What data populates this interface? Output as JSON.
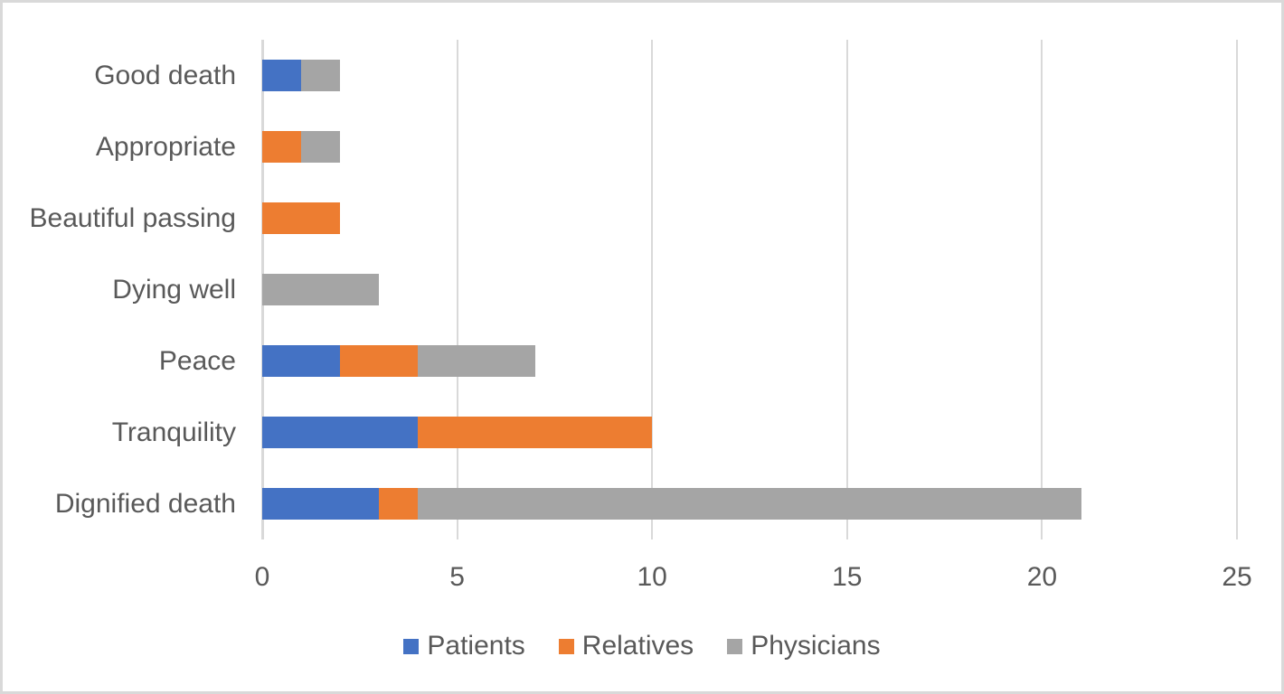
{
  "frame": {
    "background": "#FFFFFF",
    "border_color": "#D9D9D9"
  },
  "chart_data": {
    "type": "bar",
    "orientation": "horizontal",
    "stacked": true,
    "title": "",
    "xlabel": "",
    "ylabel": "",
    "categories": [
      "Good death",
      "Appropriate",
      "Beautiful passing",
      "Dying well",
      "Peace",
      "Tranquility",
      "Dignified death"
    ],
    "series": [
      {
        "name": "Patients",
        "color": "#4472C4",
        "values": [
          1,
          0,
          0,
          0,
          2,
          4,
          3
        ]
      },
      {
        "name": "Relatives",
        "color": "#ED7D31",
        "values": [
          0,
          1,
          2,
          0,
          2,
          6,
          1
        ]
      },
      {
        "name": "Physicians",
        "color": "#A5A5A5",
        "values": [
          1,
          1,
          0,
          3,
          3,
          0,
          17
        ]
      }
    ],
    "xlim": [
      0,
      25
    ],
    "x_ticks": [
      0,
      5,
      10,
      15,
      20,
      25
    ],
    "grid": true,
    "gridline_color": "#D9D9D9",
    "axis_line_color": "#D9D9D9",
    "text_color": "#595959",
    "legend_position": "bottom-center"
  }
}
